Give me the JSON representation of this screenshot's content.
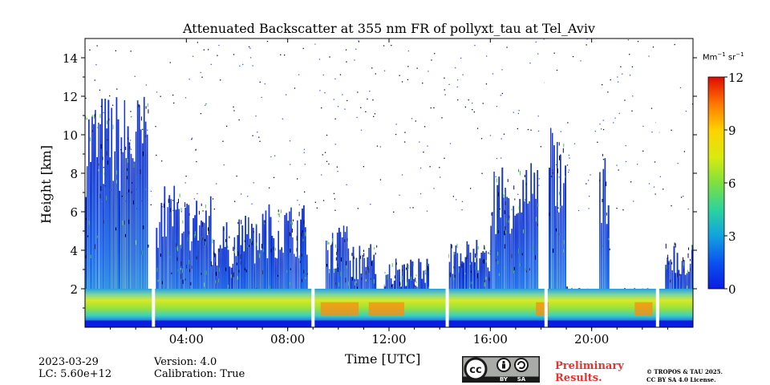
{
  "chart_data": {
    "type": "heatmap",
    "title": "Attenuated Backscatter at 355 nm FR of pollyxt_tau at Tel_Aviv",
    "xlabel": "Time [UTC]",
    "ylabel": "Height [km]",
    "xlim": [
      "00:00",
      "24:00"
    ],
    "ylim": [
      0,
      15
    ],
    "x_ticks": [
      "04:00",
      "08:00",
      "12:00",
      "16:00",
      "20:00"
    ],
    "x_tick_hours": [
      4,
      8,
      12,
      16,
      20
    ],
    "y_ticks": [
      2,
      4,
      6,
      8,
      10,
      12,
      14
    ],
    "colorbar": {
      "unit_main": "Mm",
      "unit_sup1": "−1",
      "unit_mid": "sr",
      "unit_sup2": "−1",
      "range": [
        0,
        12
      ],
      "ticks": [
        0,
        3,
        6,
        9,
        12
      ],
      "colormap": "jet"
    },
    "data_gaps_hours": [
      2.7,
      9.0,
      14.3,
      18.2,
      22.6
    ],
    "cloud_columns": [
      {
        "start": 0.0,
        "end": 2.5,
        "top_km": 12.3
      },
      {
        "start": 2.8,
        "end": 4.0,
        "top_km": 7.5
      },
      {
        "start": 4.0,
        "end": 5.0,
        "top_km": 7.0
      },
      {
        "start": 5.0,
        "end": 6.0,
        "top_km": 5.5
      },
      {
        "start": 6.0,
        "end": 6.8,
        "top_km": 6.0
      },
      {
        "start": 6.8,
        "end": 8.8,
        "top_km": 6.5
      },
      {
        "start": 9.5,
        "end": 10.5,
        "top_km": 5.3
      },
      {
        "start": 10.5,
        "end": 11.5,
        "top_km": 4.5
      },
      {
        "start": 11.8,
        "end": 13.6,
        "top_km": 3.6
      },
      {
        "start": 14.3,
        "end": 16.0,
        "top_km": 4.7
      },
      {
        "start": 16.0,
        "end": 17.9,
        "top_km": 8.8
      },
      {
        "start": 18.3,
        "end": 19.0,
        "top_km": 10.5
      },
      {
        "start": 19.0,
        "end": 20.0,
        "top_km": 2.2
      },
      {
        "start": 20.3,
        "end": 20.7,
        "top_km": 9.5
      },
      {
        "start": 20.7,
        "end": 22.5,
        "top_km": 2.1
      },
      {
        "start": 22.9,
        "end": 24.0,
        "top_km": 4.8
      }
    ],
    "boundary_layer_top_km": 2.0
  },
  "footer": {
    "date": "2023-03-29",
    "lc": "LC: 5.60e+12",
    "version": "Version: 4.0",
    "calibration": "Calibration: True",
    "preliminary_line1": "Preliminary",
    "preliminary_line2": "Results.",
    "copyright_line1": "© TROPOS & TAU 2025.",
    "copyright_line2": "CC BY SA 4.0 License.",
    "cc_badge": {
      "by": "BY",
      "sa": "SA"
    }
  },
  "colors": {
    "preliminary": "#e8322e",
    "cc_badge_bg": "#a8aba6",
    "cc_badge_dark": "#1a1a1a"
  }
}
